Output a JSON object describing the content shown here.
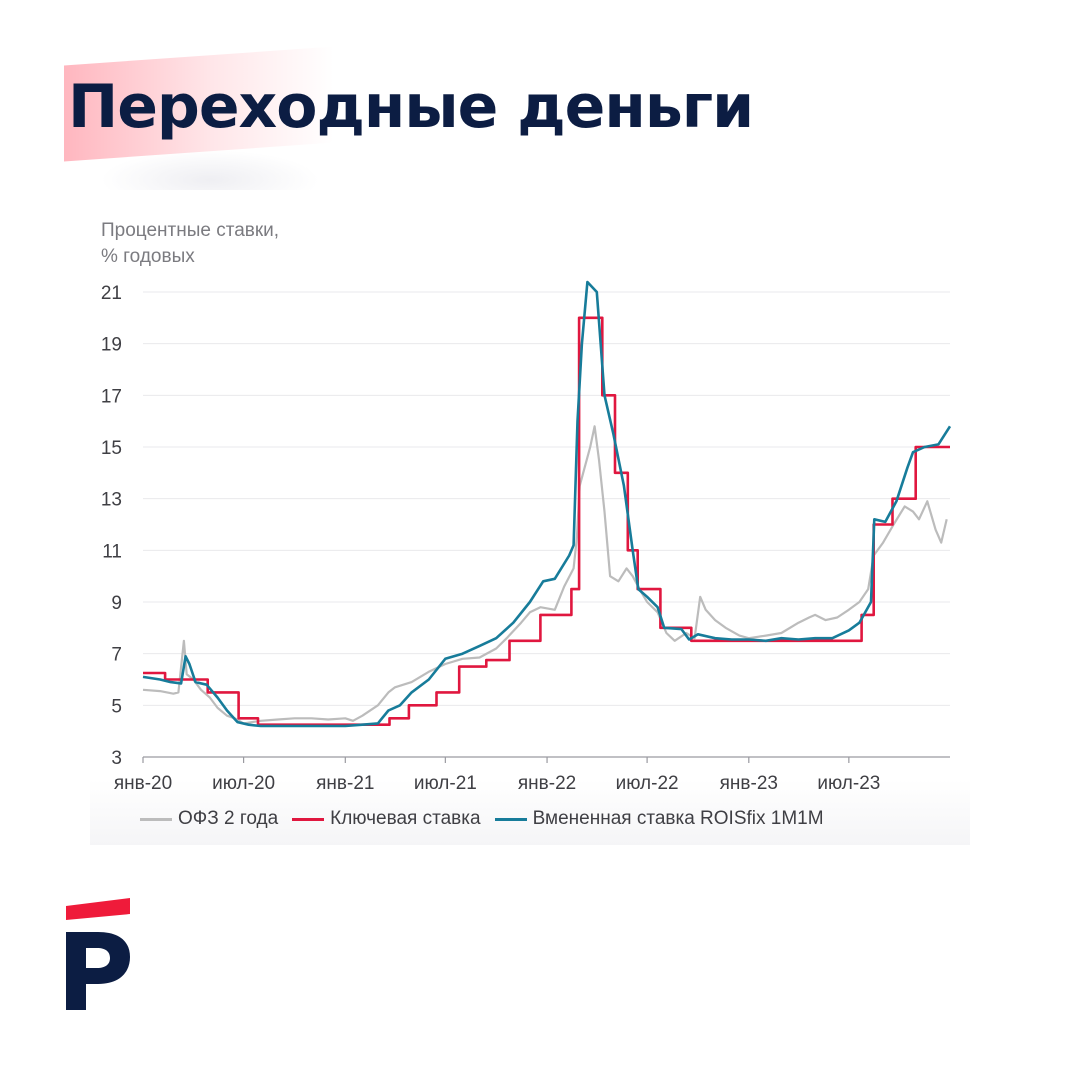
{
  "header": {
    "title": "Переходные деньги"
  },
  "colors": {
    "ofz": "#bcbcbc",
    "key_rate": "#e0173f",
    "roisfix": "#177c9a",
    "title": "#0c1d43",
    "brand_red": "#ef1b3a"
  },
  "logo": {
    "name": "brand-logo"
  },
  "chart_data": {
    "type": "line",
    "ylabel_lines": [
      "Процентные ставки,",
      "% годовых"
    ],
    "ylim": [
      3,
      21
    ],
    "yticks": [
      3,
      5,
      7,
      9,
      11,
      13,
      15,
      17,
      19,
      21
    ],
    "xlim": [
      "2020-01-01",
      "2023-12-31"
    ],
    "xticks": [
      {
        "date": "2020-01-01",
        "label": "янв-20"
      },
      {
        "date": "2020-07-01",
        "label": "июл-20"
      },
      {
        "date": "2021-01-01",
        "label": "янв-21"
      },
      {
        "date": "2021-07-01",
        "label": "июл-21"
      },
      {
        "date": "2022-01-01",
        "label": "янв-22"
      },
      {
        "date": "2022-07-01",
        "label": "июл-22"
      },
      {
        "date": "2023-01-01",
        "label": "янв-23"
      },
      {
        "date": "2023-07-01",
        "label": "июл-23"
      }
    ],
    "grid": "horizontal",
    "legend": "bottom",
    "series": [
      {
        "name": "ОФЗ 2 года",
        "color": "#bcbcbc",
        "step": false,
        "points": [
          [
            "2020-01-01",
            5.6
          ],
          [
            "2020-02-01",
            5.55
          ],
          [
            "2020-02-25",
            5.45
          ],
          [
            "2020-03-05",
            5.5
          ],
          [
            "2020-03-15",
            7.5
          ],
          [
            "2020-03-20",
            6.2
          ],
          [
            "2020-04-01",
            6.0
          ],
          [
            "2020-04-15",
            5.6
          ],
          [
            "2020-05-01",
            5.3
          ],
          [
            "2020-05-15",
            4.9
          ],
          [
            "2020-06-01",
            4.6
          ],
          [
            "2020-06-15",
            4.5
          ],
          [
            "2020-07-01",
            4.3
          ],
          [
            "2020-08-01",
            4.4
          ],
          [
            "2020-09-01",
            4.45
          ],
          [
            "2020-10-01",
            4.5
          ],
          [
            "2020-11-01",
            4.5
          ],
          [
            "2020-12-01",
            4.45
          ],
          [
            "2021-01-01",
            4.5
          ],
          [
            "2021-01-15",
            4.4
          ],
          [
            "2021-02-01",
            4.6
          ],
          [
            "2021-03-01",
            5.0
          ],
          [
            "2021-03-20",
            5.5
          ],
          [
            "2021-04-01",
            5.7
          ],
          [
            "2021-05-01",
            5.9
          ],
          [
            "2021-06-01",
            6.3
          ],
          [
            "2021-07-01",
            6.6
          ],
          [
            "2021-08-01",
            6.8
          ],
          [
            "2021-09-01",
            6.85
          ],
          [
            "2021-10-01",
            7.2
          ],
          [
            "2021-10-20",
            7.6
          ],
          [
            "2021-11-15",
            8.2
          ],
          [
            "2021-12-01",
            8.6
          ],
          [
            "2021-12-20",
            8.8
          ],
          [
            "2022-01-15",
            8.7
          ],
          [
            "2022-02-01",
            9.6
          ],
          [
            "2022-02-18",
            10.3
          ],
          [
            "2022-02-24",
            11.5
          ],
          [
            "2022-03-01",
            13.5
          ],
          [
            "2022-03-20",
            15.0
          ],
          [
            "2022-03-28",
            15.8
          ],
          [
            "2022-04-05",
            14.5
          ],
          [
            "2022-04-15",
            12.5
          ],
          [
            "2022-04-25",
            10.0
          ],
          [
            "2022-05-10",
            9.8
          ],
          [
            "2022-05-25",
            10.3
          ],
          [
            "2022-06-05",
            10.0
          ],
          [
            "2022-06-20",
            9.4
          ],
          [
            "2022-07-01",
            9.0
          ],
          [
            "2022-07-20",
            8.6
          ],
          [
            "2022-08-05",
            7.8
          ],
          [
            "2022-08-20",
            7.5
          ],
          [
            "2022-09-10",
            7.8
          ],
          [
            "2022-09-25",
            7.6
          ],
          [
            "2022-10-05",
            9.2
          ],
          [
            "2022-10-15",
            8.7
          ],
          [
            "2022-11-01",
            8.3
          ],
          [
            "2022-11-20",
            8.0
          ],
          [
            "2022-12-15",
            7.7
          ],
          [
            "2023-01-01",
            7.6
          ],
          [
            "2023-02-01",
            7.7
          ],
          [
            "2023-03-01",
            7.8
          ],
          [
            "2023-04-01",
            8.2
          ],
          [
            "2023-04-20",
            8.4
          ],
          [
            "2023-05-01",
            8.5
          ],
          [
            "2023-05-20",
            8.3
          ],
          [
            "2023-06-10",
            8.4
          ],
          [
            "2023-07-01",
            8.7
          ],
          [
            "2023-07-20",
            9.0
          ],
          [
            "2023-08-05",
            9.5
          ],
          [
            "2023-08-15",
            10.8
          ],
          [
            "2023-09-01",
            11.3
          ],
          [
            "2023-09-20",
            12.0
          ],
          [
            "2023-10-10",
            12.7
          ],
          [
            "2023-10-25",
            12.5
          ],
          [
            "2023-11-05",
            12.2
          ],
          [
            "2023-11-20",
            12.9
          ],
          [
            "2023-12-05",
            11.8
          ],
          [
            "2023-12-15",
            11.3
          ],
          [
            "2023-12-25",
            12.2
          ]
        ]
      },
      {
        "name": "Ключевая ставка",
        "color": "#e0173f",
        "step": true,
        "points": [
          [
            "2020-01-01",
            6.25
          ],
          [
            "2020-02-10",
            6.0
          ],
          [
            "2020-04-27",
            5.5
          ],
          [
            "2020-06-22",
            4.5
          ],
          [
            "2020-07-27",
            4.25
          ],
          [
            "2021-03-22",
            4.5
          ],
          [
            "2021-04-26",
            5.0
          ],
          [
            "2021-06-15",
            5.5
          ],
          [
            "2021-07-26",
            6.5
          ],
          [
            "2021-09-13",
            6.75
          ],
          [
            "2021-10-25",
            7.5
          ],
          [
            "2021-12-20",
            8.5
          ],
          [
            "2022-02-14",
            9.5
          ],
          [
            "2022-02-28",
            20.0
          ],
          [
            "2022-04-11",
            17.0
          ],
          [
            "2022-05-04",
            14.0
          ],
          [
            "2022-05-27",
            11.0
          ],
          [
            "2022-06-14",
            9.5
          ],
          [
            "2022-07-25",
            8.0
          ],
          [
            "2022-09-19",
            7.5
          ],
          [
            "2023-07-24",
            8.5
          ],
          [
            "2023-08-15",
            12.0
          ],
          [
            "2023-09-18",
            13.0
          ],
          [
            "2023-10-30",
            15.0
          ],
          [
            "2023-12-31",
            15.0
          ]
        ]
      },
      {
        "name": "Вмененная ставка ROISfix 1M1M",
        "color": "#177c9a",
        "step": false,
        "points": [
          [
            "2020-01-01",
            6.1
          ],
          [
            "2020-02-01",
            6.0
          ],
          [
            "2020-02-20",
            5.9
          ],
          [
            "2020-03-10",
            5.85
          ],
          [
            "2020-03-18",
            6.9
          ],
          [
            "2020-03-25",
            6.6
          ],
          [
            "2020-04-05",
            5.9
          ],
          [
            "2020-04-25",
            5.8
          ],
          [
            "2020-05-15",
            5.3
          ],
          [
            "2020-06-01",
            4.8
          ],
          [
            "2020-06-20",
            4.35
          ],
          [
            "2020-07-10",
            4.25
          ],
          [
            "2020-08-01",
            4.2
          ],
          [
            "2020-10-01",
            4.2
          ],
          [
            "2020-12-01",
            4.2
          ],
          [
            "2021-01-01",
            4.2
          ],
          [
            "2021-02-01",
            4.25
          ],
          [
            "2021-03-01",
            4.3
          ],
          [
            "2021-03-20",
            4.8
          ],
          [
            "2021-04-10",
            5.0
          ],
          [
            "2021-05-01",
            5.5
          ],
          [
            "2021-06-01",
            6.0
          ],
          [
            "2021-07-01",
            6.8
          ],
          [
            "2021-08-01",
            7.0
          ],
          [
            "2021-09-01",
            7.3
          ],
          [
            "2021-10-01",
            7.6
          ],
          [
            "2021-11-01",
            8.2
          ],
          [
            "2021-12-01",
            9.0
          ],
          [
            "2021-12-25",
            9.8
          ],
          [
            "2022-01-15",
            9.9
          ],
          [
            "2022-02-10",
            10.8
          ],
          [
            "2022-02-18",
            11.2
          ],
          [
            "2022-02-25",
            16.0
          ],
          [
            "2022-03-05",
            19.0
          ],
          [
            "2022-03-15",
            21.5
          ],
          [
            "2022-04-01",
            21.0
          ],
          [
            "2022-04-15",
            17.0
          ],
          [
            "2022-05-01",
            15.5
          ],
          [
            "2022-05-20",
            13.5
          ],
          [
            "2022-06-05",
            11.0
          ],
          [
            "2022-06-15",
            9.5
          ],
          [
            "2022-07-01",
            9.2
          ],
          [
            "2022-07-20",
            8.8
          ],
          [
            "2022-08-01",
            8.0
          ],
          [
            "2022-09-01",
            7.95
          ],
          [
            "2022-09-15",
            7.55
          ],
          [
            "2022-10-01",
            7.75
          ],
          [
            "2022-11-01",
            7.6
          ],
          [
            "2022-12-01",
            7.55
          ],
          [
            "2023-01-01",
            7.55
          ],
          [
            "2023-02-01",
            7.5
          ],
          [
            "2023-03-01",
            7.6
          ],
          [
            "2023-04-01",
            7.55
          ],
          [
            "2023-05-01",
            7.6
          ],
          [
            "2023-06-01",
            7.6
          ],
          [
            "2023-07-01",
            7.9
          ],
          [
            "2023-07-20",
            8.2
          ],
          [
            "2023-08-10",
            9.0
          ],
          [
            "2023-08-16",
            12.2
          ],
          [
            "2023-09-05",
            12.1
          ],
          [
            "2023-09-25",
            12.9
          ],
          [
            "2023-10-15",
            14.2
          ],
          [
            "2023-10-25",
            14.8
          ],
          [
            "2023-11-15",
            15.0
          ],
          [
            "2023-12-10",
            15.1
          ],
          [
            "2023-12-31",
            15.8
          ]
        ]
      }
    ]
  }
}
